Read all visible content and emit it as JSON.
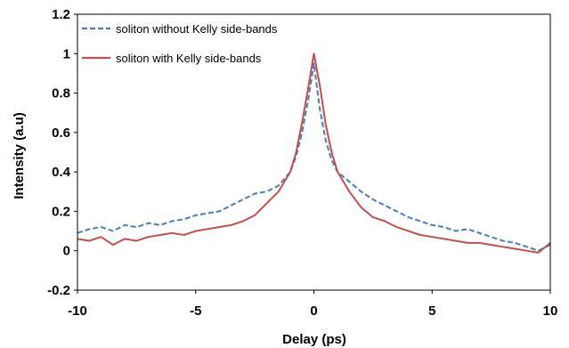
{
  "chart_data": {
    "type": "line",
    "title": "",
    "xlabel": "Delay (ps)",
    "ylabel": "Intensity (a.u)",
    "xlim": [
      -10,
      10
    ],
    "ylim": [
      -0.2,
      1.2
    ],
    "xticks": [
      "-10",
      "-5",
      "0",
      "5",
      "10"
    ],
    "yticks": [
      "-0.2",
      "0",
      "0.2",
      "0.4",
      "0.6",
      "0.8",
      "1",
      "1.2"
    ],
    "grid": false,
    "legend_position": "top-left",
    "series": [
      {
        "name": "soliton without Kelly side-bands",
        "color": "#4a7ebb",
        "style": "dashed",
        "x": [
          -10,
          -9.5,
          -9,
          -8.5,
          -8,
          -7.5,
          -7,
          -6.5,
          -6,
          -5.5,
          -5,
          -4.5,
          -4,
          -3.5,
          -3,
          -2.5,
          -2,
          -1.5,
          -1,
          -0.75,
          -0.5,
          -0.25,
          0,
          0.25,
          0.5,
          0.75,
          1,
          1.5,
          2,
          2.5,
          3,
          3.5,
          4,
          4.5,
          5,
          5.5,
          6,
          6.5,
          7,
          7.5,
          8,
          8.5,
          9,
          9.5,
          10
        ],
        "y": [
          0.09,
          0.11,
          0.12,
          0.1,
          0.13,
          0.12,
          0.14,
          0.13,
          0.15,
          0.16,
          0.18,
          0.19,
          0.2,
          0.23,
          0.26,
          0.29,
          0.3,
          0.33,
          0.4,
          0.48,
          0.6,
          0.76,
          0.95,
          0.72,
          0.56,
          0.46,
          0.4,
          0.35,
          0.3,
          0.26,
          0.23,
          0.2,
          0.17,
          0.15,
          0.13,
          0.12,
          0.1,
          0.11,
          0.09,
          0.07,
          0.05,
          0.04,
          0.02,
          0.0,
          0.03
        ]
      },
      {
        "name": "soliton with Kelly side-bands",
        "color": "#c0504d",
        "style": "solid",
        "x": [
          -10,
          -9.5,
          -9,
          -8.5,
          -8,
          -7.5,
          -7,
          -6.5,
          -6,
          -5.5,
          -5,
          -4.5,
          -4,
          -3.5,
          -3,
          -2.5,
          -2,
          -1.5,
          -1,
          -0.75,
          -0.5,
          -0.25,
          0,
          0.25,
          0.5,
          0.75,
          1,
          1.5,
          2,
          2.5,
          3,
          3.5,
          4,
          4.5,
          5,
          5.5,
          6,
          6.5,
          7,
          7.5,
          8,
          8.5,
          9,
          9.5,
          10
        ],
        "y": [
          0.06,
          0.05,
          0.07,
          0.03,
          0.06,
          0.05,
          0.07,
          0.08,
          0.09,
          0.08,
          0.1,
          0.11,
          0.12,
          0.13,
          0.15,
          0.18,
          0.24,
          0.3,
          0.4,
          0.5,
          0.65,
          0.82,
          1.0,
          0.84,
          0.64,
          0.5,
          0.4,
          0.3,
          0.22,
          0.17,
          0.15,
          0.12,
          0.1,
          0.08,
          0.07,
          0.06,
          0.05,
          0.04,
          0.04,
          0.03,
          0.02,
          0.01,
          0.0,
          -0.01,
          0.04
        ]
      }
    ]
  }
}
